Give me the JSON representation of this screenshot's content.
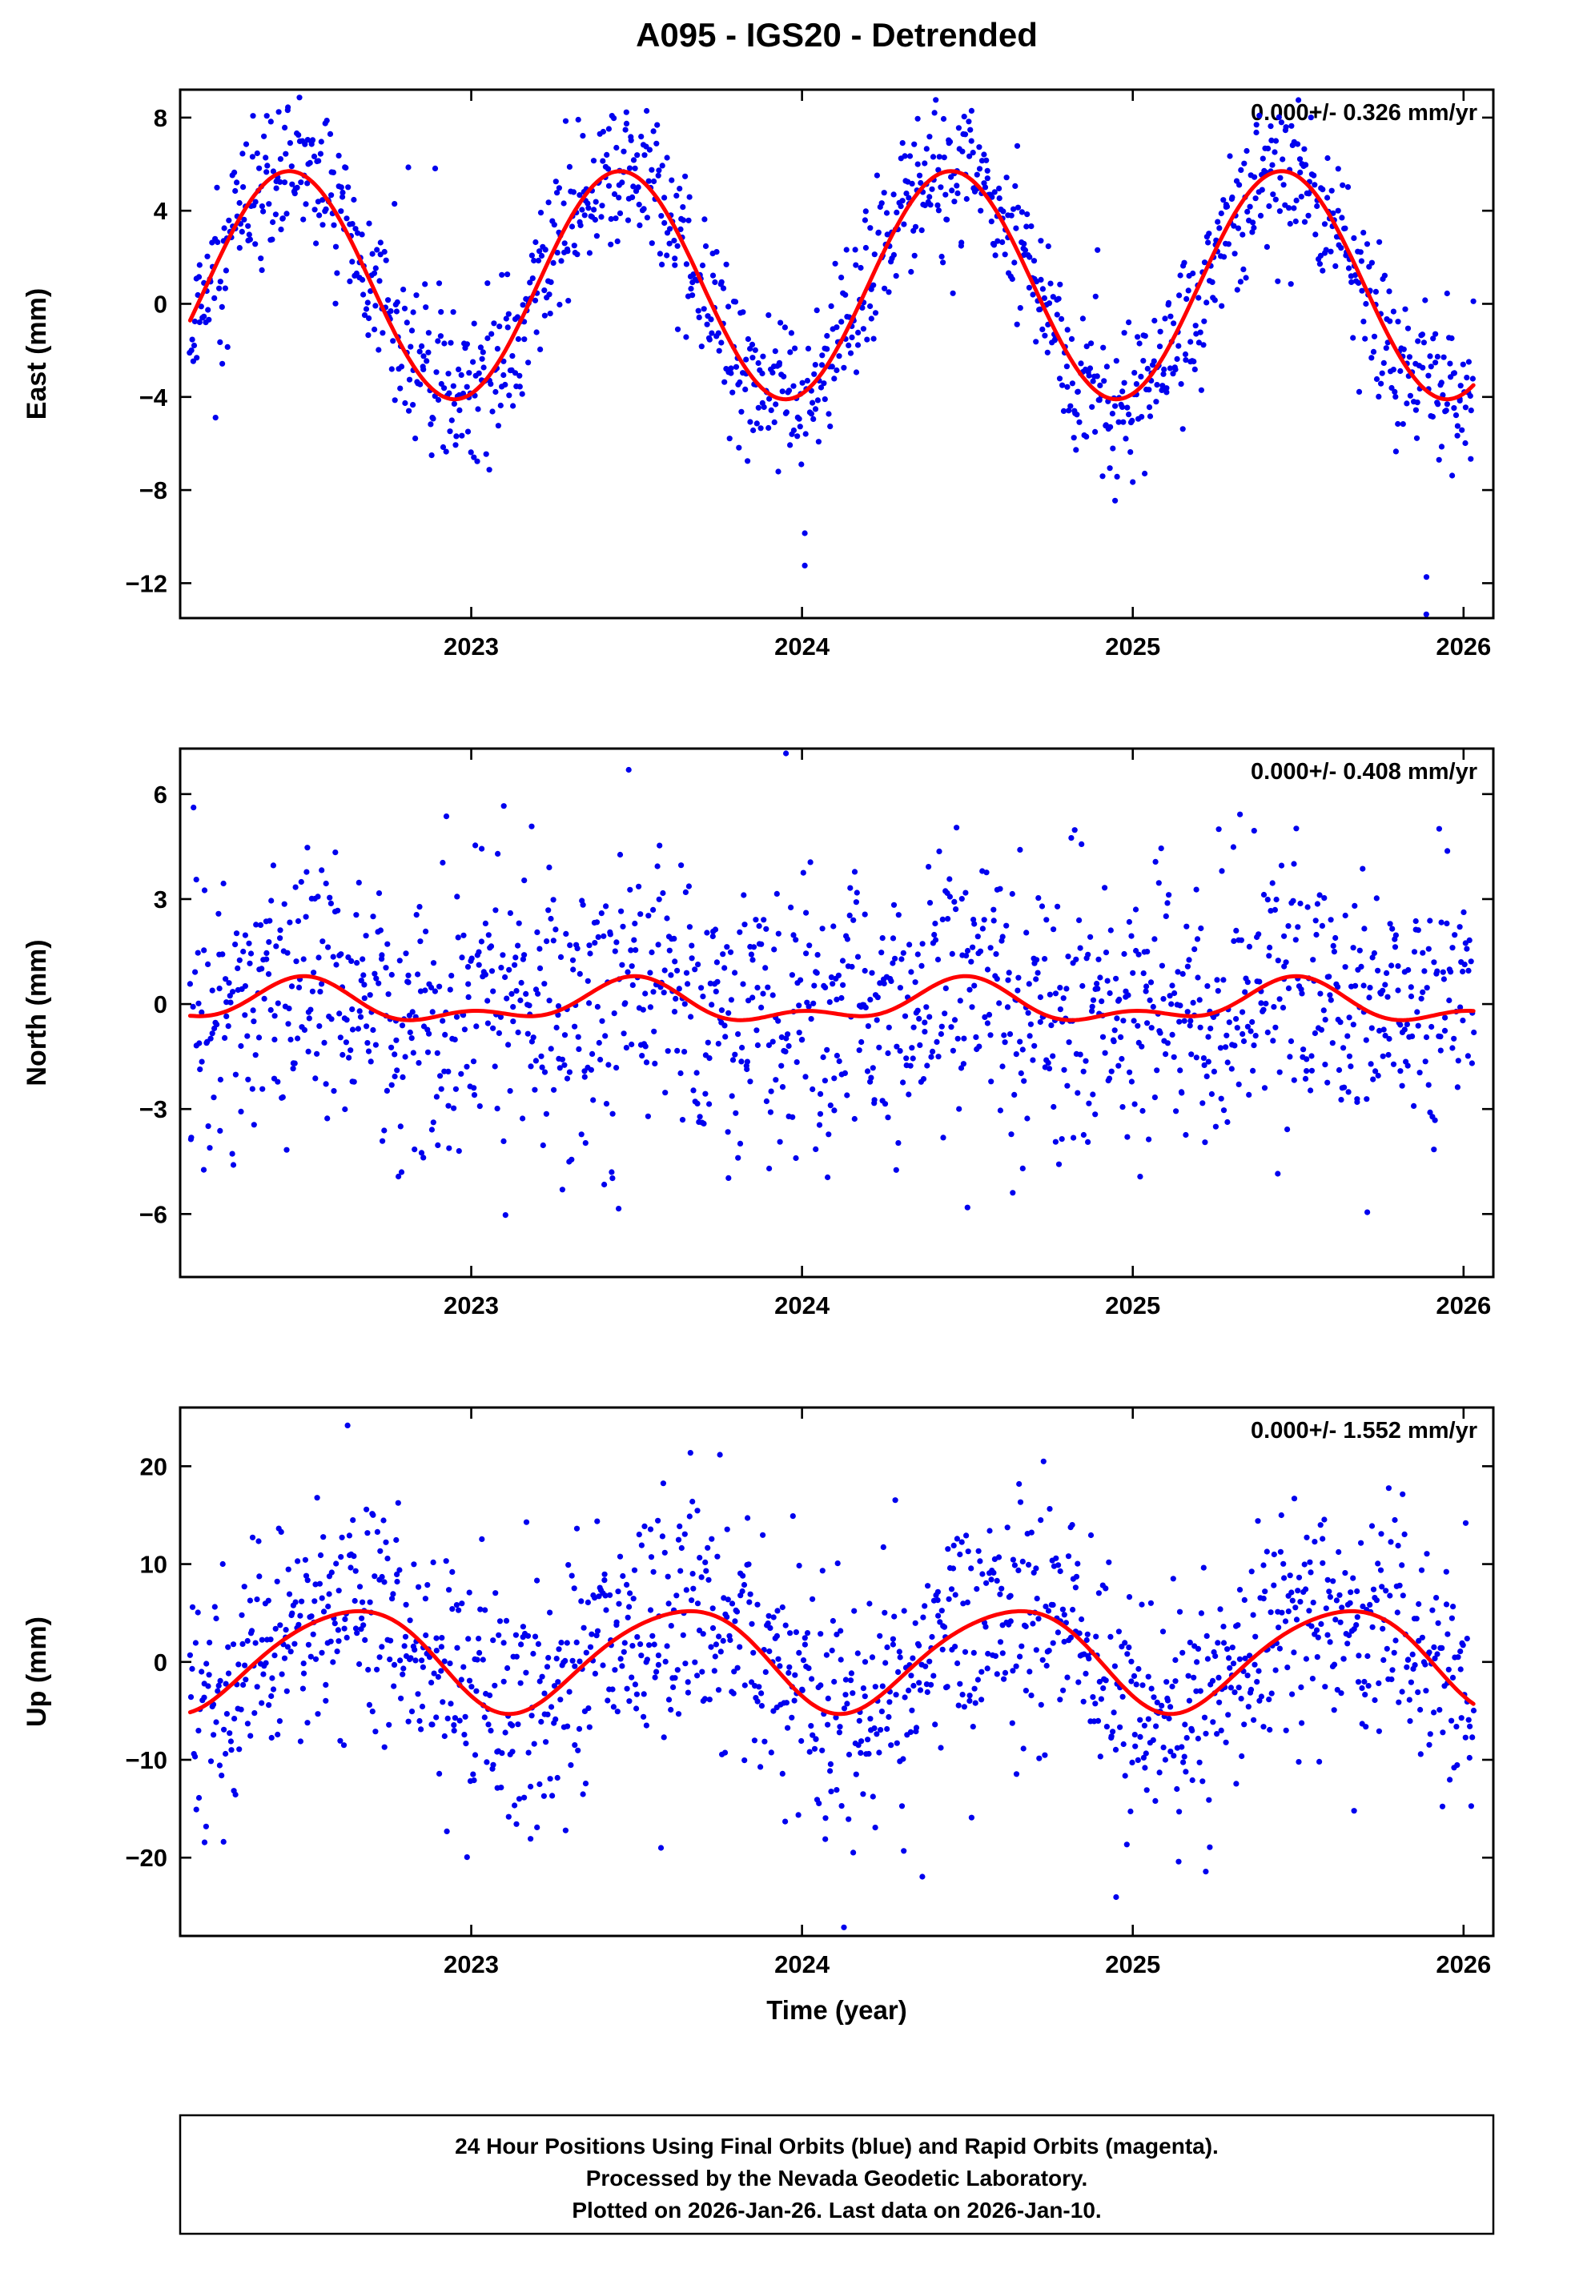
{
  "title": "A095 - IGS20 - Detrended",
  "xlabel": "Time (year)",
  "colors": {
    "final_orbits": "#0000EE",
    "rapid_orbits": "#FF00FF",
    "trend_line": "#FF0000",
    "frame": "#000000"
  },
  "caption": {
    "lines": [
      "24 Hour Positions Using Final Orbits (blue) and Rapid Orbits (magenta).",
      "Processed by the Nevada Geodetic Laboratory.",
      "Plotted on 2026-Jan-26. Last data on 2026-Jan-10."
    ]
  },
  "chart_data": [
    {
      "type": "scatter",
      "name": "east",
      "ylabel": "East (mm)",
      "annotation": "0.000+/- 0.326 mm/yr",
      "rate_mm_yr": 0.0,
      "rate_sigma_mm_yr": 0.326,
      "xlim": [
        2022.12,
        2026.09
      ],
      "xticks": [
        2023,
        2024,
        2025,
        2026
      ],
      "ylim": [
        -13.5,
        9.2
      ],
      "yticks": [
        8,
        4,
        0,
        -4,
        -8,
        -12
      ],
      "x_data_range": [
        2022.15,
        2026.03
      ],
      "n_points": 1350,
      "noise_sigma_mm": 1.6,
      "outlier_prob": 0.012,
      "outlier_scale": 2.2,
      "seed": 11,
      "seasonal_curve": {
        "mean_mm": 0.8,
        "annual_amp_mm": 4.9,
        "annual_peak_frac": 0.45,
        "semiannual_amp_mm": 0.0,
        "semiannual_peak_frac": 0.0
      }
    },
    {
      "type": "scatter",
      "name": "north",
      "ylabel": "North (mm)",
      "annotation": "0.000+/- 0.408 mm/yr",
      "rate_mm_yr": 0.0,
      "rate_sigma_mm_yr": 0.408,
      "xlim": [
        2022.12,
        2026.09
      ],
      "xticks": [
        2023,
        2024,
        2025,
        2026
      ],
      "ylim": [
        -7.8,
        7.3
      ],
      "yticks": [
        6,
        3,
        0,
        -3,
        -6
      ],
      "x_data_range": [
        2022.15,
        2026.03
      ],
      "n_points": 1350,
      "noise_sigma_mm": 1.9,
      "outlier_prob": 0.02,
      "outlier_scale": 1.8,
      "seed": 22,
      "seasonal_curve": {
        "mean_mm": 0.0,
        "annual_amp_mm": 0.5,
        "annual_peak_frac": 0.48,
        "semiannual_amp_mm": 0.3,
        "semiannual_peak_frac": 0.0
      }
    },
    {
      "type": "scatter",
      "name": "up",
      "ylabel": "Up (mm)",
      "annotation": "0.000+/- 1.552 mm/yr",
      "rate_mm_yr": 0.0,
      "rate_sigma_mm_yr": 1.552,
      "xlim": [
        2022.12,
        2026.09
      ],
      "xticks": [
        2023,
        2024,
        2025,
        2026
      ],
      "ylim": [
        -28,
        26
      ],
      "yticks": [
        20,
        10,
        0,
        -10,
        -20
      ],
      "x_data_range": [
        2022.15,
        2026.03
      ],
      "n_points": 1350,
      "noise_sigma_mm": 6.0,
      "outlier_prob": 0.018,
      "outlier_scale": 1.8,
      "seed": 33,
      "seasonal_curve": {
        "mean_mm": 0.4,
        "annual_amp_mm": 5.2,
        "annual_peak_frac": 0.63,
        "semiannual_amp_mm": 0.6,
        "semiannual_peak_frac": 0.33
      }
    }
  ]
}
